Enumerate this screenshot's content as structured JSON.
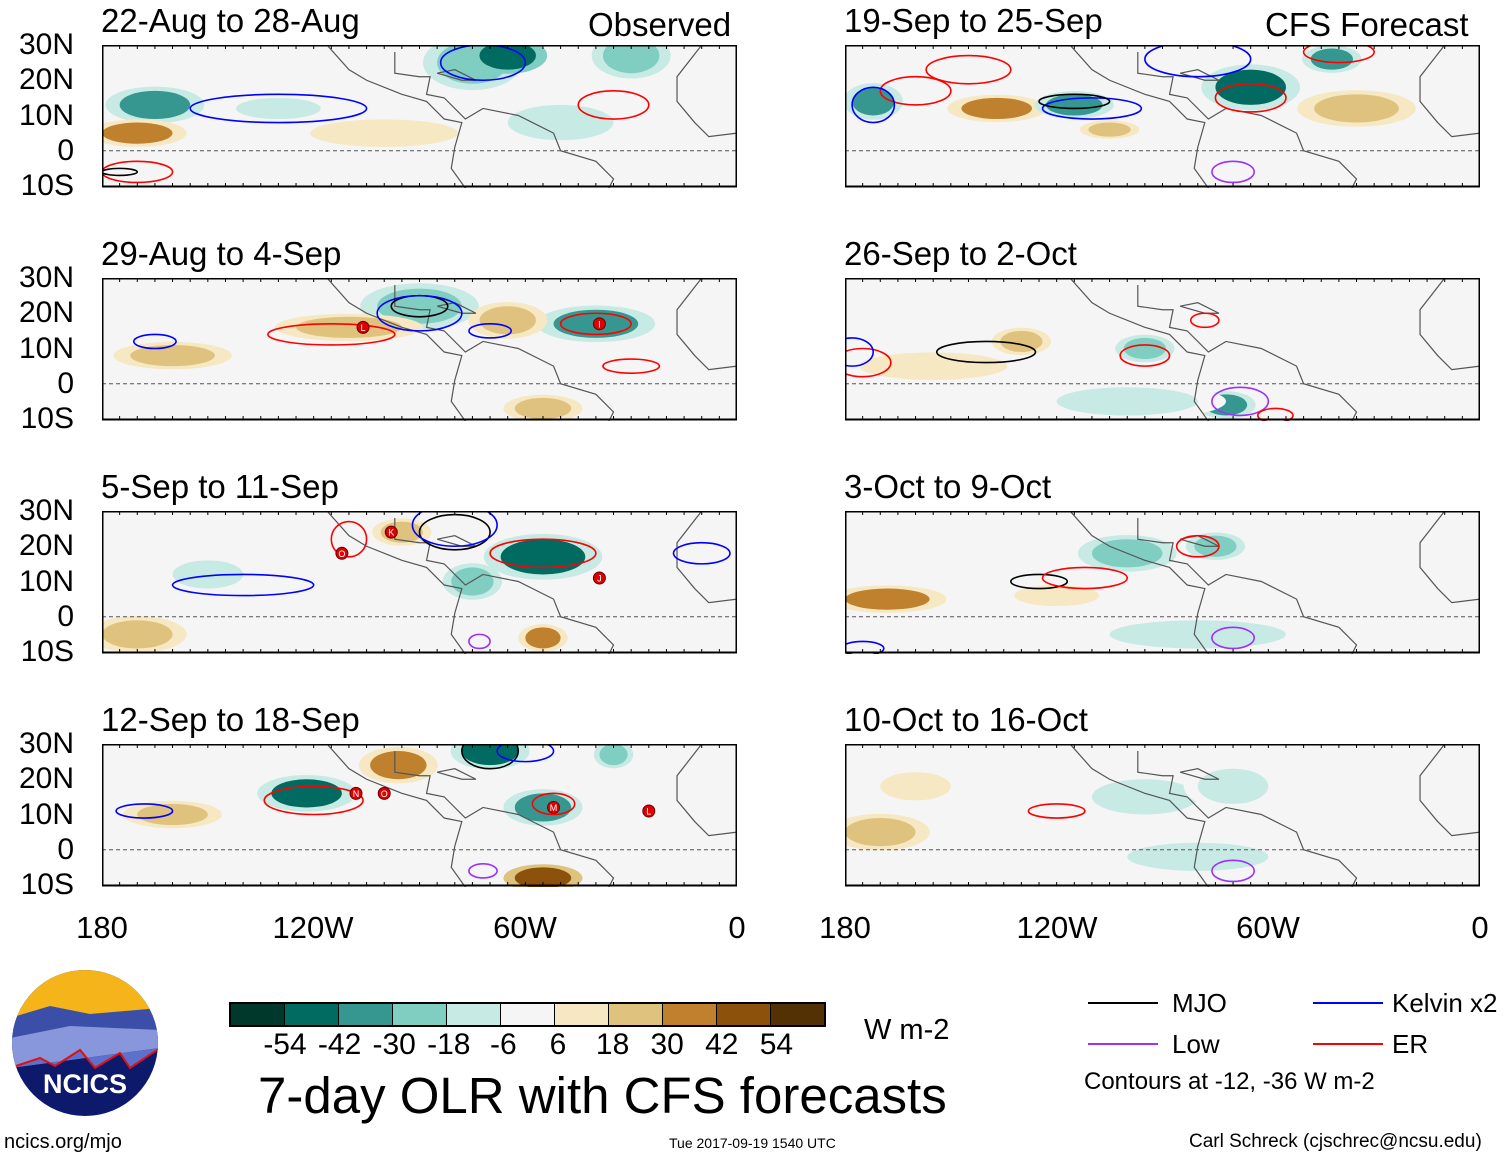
{
  "header": {
    "observed_label": "Observed",
    "forecast_label": "CFS Forecast"
  },
  "lat_labels": [
    "30N",
    "20N",
    "10N",
    "0",
    "10S"
  ],
  "lon_labels": [
    "180",
    "120W",
    "60W",
    "0"
  ],
  "colorbar": {
    "colors": [
      "#00392c",
      "#016b61",
      "#35978f",
      "#80cdc1",
      "#c7eae5",
      "#f5f5f5",
      "#f6e8c3",
      "#dfc27d",
      "#bf812d",
      "#8c510a",
      "#543005"
    ],
    "labels": [
      "-54",
      "-42",
      "-30",
      "-18",
      "-6",
      "6",
      "18",
      "30",
      "42",
      "54"
    ],
    "units": "W m-2"
  },
  "title": "7-day OLR with CFS forecasts",
  "legend": {
    "items": [
      {
        "label": "MJO",
        "color": "#000000"
      },
      {
        "label": "Kelvin x2",
        "color": "#0000ff"
      },
      {
        "label": "Low",
        "color": "#9b30ff"
      },
      {
        "label": "ER",
        "color": "#ff0000"
      }
    ],
    "note": "Contours at -12, -36 W m-2"
  },
  "footer": {
    "url": "ncics.org/mjo",
    "timestamp": "Tue 2017-09-19 1540 UTC",
    "credit": "Carl Schreck (cjschrec@ncsu.edu)"
  },
  "logo": {
    "text": "NCICS"
  },
  "panels": [
    {
      "title": "22-Aug to 28-Aug",
      "blobs": [
        [
          -165,
          13,
          10,
          4,
          -40
        ],
        [
          -170,
          5,
          10,
          3,
          35
        ],
        [
          -75,
          25,
          10,
          6,
          -30
        ],
        [
          -65,
          27,
          8,
          4,
          -50
        ],
        [
          -30,
          27,
          8,
          5,
          -25
        ],
        [
          -130,
          12,
          12,
          3,
          -10
        ],
        [
          -50,
          8,
          15,
          5,
          -12
        ],
        [
          -100,
          5,
          15,
          3,
          15
        ]
      ],
      "contours": [
        [
          "ER",
          -170,
          -6,
          10,
          3
        ],
        [
          "Kelvin",
          -130,
          12,
          25,
          4
        ],
        [
          "Kelvin",
          -72,
          25,
          12,
          5
        ],
        [
          "ER",
          -35,
          13,
          10,
          4
        ],
        [
          "MJO",
          -175,
          -6,
          5,
          1
        ]
      ],
      "storms": []
    },
    {
      "title": "29-Aug to 4-Sep",
      "blobs": [
        [
          -90,
          22,
          12,
          5,
          -30
        ],
        [
          -40,
          17,
          12,
          4,
          -35
        ],
        [
          -160,
          8,
          12,
          3,
          25
        ],
        [
          -110,
          16,
          15,
          3,
          20
        ],
        [
          -65,
          18,
          8,
          4,
          25
        ],
        [
          -55,
          -7,
          8,
          3,
          25
        ]
      ],
      "contours": [
        [
          "ER",
          -115,
          14,
          18,
          3
        ],
        [
          "MJO",
          -90,
          22,
          8,
          3
        ],
        [
          "Kelvin",
          -90,
          20,
          12,
          5
        ],
        [
          "ER",
          -40,
          17,
          10,
          3
        ],
        [
          "Kelvin",
          -70,
          15,
          6,
          2
        ],
        [
          "Kelvin",
          -165,
          12,
          6,
          2
        ],
        [
          "ER",
          -30,
          5,
          8,
          2
        ]
      ],
      "storms": [
        [
          "L",
          -106,
          16
        ],
        [
          "I",
          -39,
          17
        ]
      ]
    },
    {
      "title": "5-Sep to 11-Sep",
      "blobs": [
        [
          -55,
          17,
          12,
          5,
          -45
        ],
        [
          -95,
          24,
          6,
          3,
          25
        ],
        [
          -150,
          12,
          10,
          4,
          -15
        ],
        [
          -55,
          -6,
          5,
          3,
          35
        ],
        [
          -170,
          -5,
          10,
          4,
          25
        ],
        [
          -75,
          10,
          6,
          4,
          -20
        ]
      ],
      "contours": [
        [
          "ER",
          -55,
          18,
          15,
          4
        ],
        [
          "MJO",
          -80,
          24,
          10,
          5
        ],
        [
          "Kelvin",
          -80,
          26,
          12,
          6
        ],
        [
          "Kelvin",
          -140,
          9,
          20,
          3
        ],
        [
          "ER",
          -110,
          22,
          5,
          5
        ],
        [
          "Kelvin",
          -10,
          18,
          8,
          3
        ],
        [
          "Low",
          -73,
          -7,
          3,
          2
        ]
      ],
      "storms": [
        [
          "K",
          -98,
          24
        ],
        [
          "O",
          -112,
          18
        ],
        [
          "J",
          -39,
          11
        ]
      ]
    },
    {
      "title": "12-Sep to 18-Sep",
      "blobs": [
        [
          -122,
          16,
          10,
          4,
          -45
        ],
        [
          -70,
          28,
          8,
          4,
          -45
        ],
        [
          -55,
          12,
          8,
          4,
          -40
        ],
        [
          -96,
          24,
          8,
          4,
          35
        ],
        [
          -55,
          -8,
          8,
          3,
          45
        ],
        [
          -160,
          10,
          10,
          3,
          20
        ],
        [
          -35,
          27,
          4,
          3,
          -30
        ]
      ],
      "contours": [
        [
          "ER",
          -120,
          14,
          14,
          4
        ],
        [
          "MJO",
          -70,
          28,
          8,
          5
        ],
        [
          "Kelvin",
          -60,
          28,
          8,
          3
        ],
        [
          "Kelvin",
          -168,
          11,
          8,
          2
        ],
        [
          "ER",
          -52,
          13,
          6,
          3
        ],
        [
          "Low",
          -72,
          -6,
          4,
          2
        ]
      ],
      "storms": [
        [
          "N",
          -108,
          16
        ],
        [
          "O",
          -100,
          16
        ],
        [
          "M",
          -52,
          12
        ],
        [
          "L",
          -25,
          11
        ]
      ]
    },
    {
      "title": "19-Sep to 25-Sep",
      "blobs": [
        [
          -172,
          14,
          6,
          4,
          -40
        ],
        [
          -137,
          12,
          10,
          3,
          35
        ],
        [
          -115,
          13,
          8,
          3,
          -40
        ],
        [
          -65,
          18,
          10,
          5,
          -45
        ],
        [
          -42,
          26,
          6,
          3,
          -40
        ],
        [
          -35,
          12,
          12,
          4,
          25
        ],
        [
          -105,
          6,
          6,
          2,
          25
        ]
      ],
      "contours": [
        [
          "ER",
          -160,
          17,
          10,
          4
        ],
        [
          "Kelvin",
          -172,
          13,
          6,
          5
        ],
        [
          "ER",
          -145,
          23,
          12,
          4
        ],
        [
          "Kelvin",
          -110,
          12,
          14,
          3
        ],
        [
          "MJO",
          -115,
          14,
          10,
          2
        ],
        [
          "Kelvin",
          -80,
          26,
          15,
          5
        ],
        [
          "ER",
          -65,
          15,
          10,
          4
        ],
        [
          "Low",
          -70,
          -6,
          6,
          3
        ],
        [
          "ER",
          -40,
          28,
          10,
          3
        ]
      ],
      "storms": []
    },
    {
      "title": "26-Sep to 2-Oct",
      "blobs": [
        [
          -95,
          10,
          6,
          3,
          -30
        ],
        [
          -72,
          -6,
          6,
          3,
          -35
        ],
        [
          -130,
          12,
          6,
          3,
          20
        ],
        [
          -155,
          5,
          15,
          3,
          15
        ],
        [
          -100,
          -5,
          20,
          4,
          -12
        ]
      ],
      "contours": [
        [
          "MJO",
          -140,
          9,
          14,
          3
        ],
        [
          "ER",
          -175,
          6,
          8,
          4
        ],
        [
          "Kelvin",
          -178,
          9,
          6,
          4
        ],
        [
          "ER",
          -95,
          8,
          7,
          3
        ],
        [
          "ER",
          -78,
          18,
          4,
          2
        ],
        [
          "Low",
          -68,
          -5,
          8,
          4
        ],
        [
          "ER",
          -58,
          -9,
          5,
          2
        ]
      ],
      "storms": []
    },
    {
      "title": "3-Oct to 9-Oct",
      "blobs": [
        [
          -168,
          5,
          12,
          3,
          35
        ],
        [
          -100,
          18,
          10,
          4,
          -25
        ],
        [
          -75,
          20,
          6,
          3,
          -30
        ],
        [
          -120,
          6,
          12,
          3,
          12
        ],
        [
          -80,
          -5,
          25,
          4,
          -12
        ]
      ],
      "contours": [
        [
          "MJO",
          -125,
          10,
          8,
          2
        ],
        [
          "ER",
          -112,
          11,
          12,
          3
        ],
        [
          "ER",
          -80,
          20,
          6,
          3
        ],
        [
          "Low",
          -70,
          -6,
          6,
          3
        ],
        [
          "Kelvin",
          -175,
          -9,
          6,
          2
        ]
      ],
      "storms": []
    },
    {
      "title": "10-Oct to 16-Oct",
      "blobs": [
        [
          -170,
          5,
          10,
          4,
          25
        ],
        [
          -95,
          15,
          15,
          5,
          -12
        ],
        [
          -70,
          18,
          10,
          5,
          -15
        ],
        [
          -160,
          18,
          10,
          4,
          12
        ],
        [
          -80,
          -2,
          20,
          4,
          -10
        ]
      ],
      "contours": [
        [
          "ER",
          -120,
          11,
          8,
          2
        ],
        [
          "Low",
          -70,
          -6,
          6,
          3
        ]
      ],
      "storms": []
    }
  ]
}
